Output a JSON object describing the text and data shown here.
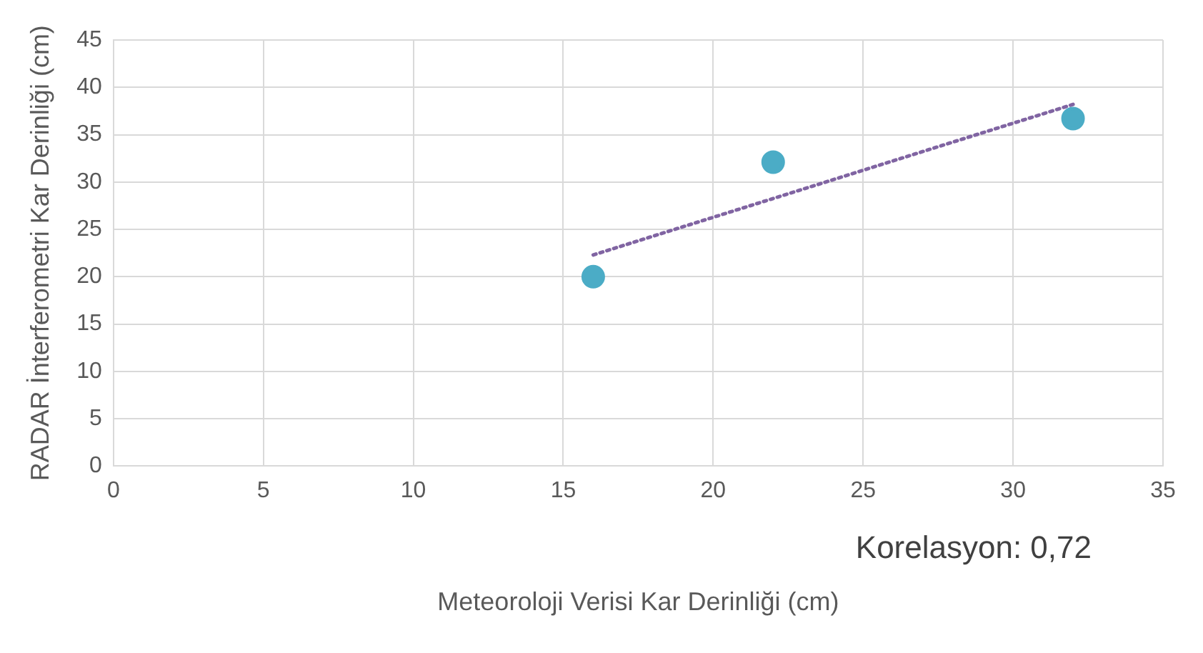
{
  "chart_data": {
    "type": "scatter",
    "xlabel": "Meteoroloji Verisi Kar Derinliği (cm)",
    "ylabel": "RADAR İnterferometri Kar Derinliği (cm)",
    "xlim": [
      0,
      35
    ],
    "xticks": [
      0,
      5,
      10,
      15,
      20,
      25,
      30,
      35
    ],
    "ylim": [
      0,
      45
    ],
    "yticks": [
      0,
      5,
      10,
      15,
      20,
      25,
      30,
      35,
      40,
      45
    ],
    "grid": true,
    "legend": false,
    "annotations": [
      "Korelasyon: 0,72"
    ],
    "series": [
      {
        "type": "scatter",
        "color": "#4bacc6",
        "marker": "circle",
        "x": [
          16,
          22,
          32
        ],
        "values": [
          20,
          32.1,
          36.7
        ]
      },
      {
        "type": "line",
        "color": "#8064a2",
        "marker": "none",
        "line_style": "dotted",
        "x": [
          16,
          32
        ],
        "values": [
          22.3,
          38.2
        ]
      }
    ]
  }
}
